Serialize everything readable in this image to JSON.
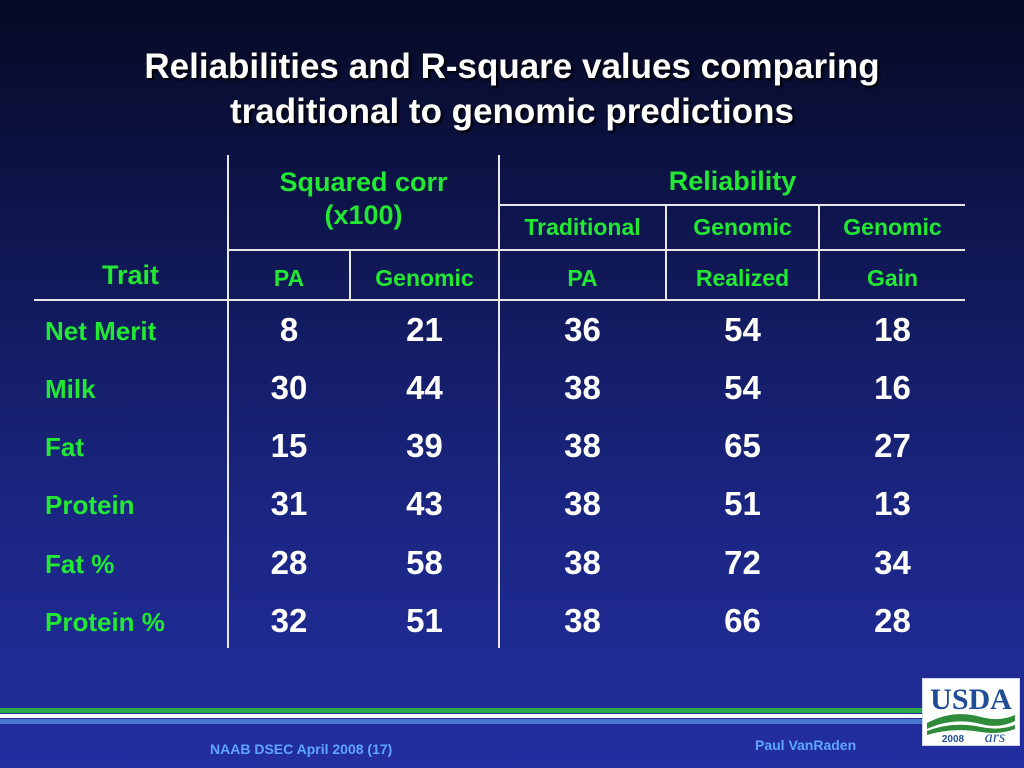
{
  "title": {
    "line1": "Reliabilities and R-square values comparing",
    "line2": "traditional to genomic predictions"
  },
  "headers": {
    "trait": "Trait",
    "squared_corr_line1": "Squared corr",
    "squared_corr_line2": "(x100)",
    "reliability": "Reliability",
    "traditional": "Traditional",
    "genomic_a": "Genomic",
    "genomic_b": "Genomic",
    "pa_a": "PA",
    "genomic_c": "Genomic",
    "pa_b": "PA",
    "realized": "Realized",
    "gain": "Gain"
  },
  "rows": [
    {
      "trait": "Net Merit",
      "values": [
        "8",
        "21",
        "36",
        "54",
        "18"
      ]
    },
    {
      "trait": "Milk",
      "values": [
        "30",
        "44",
        "38",
        "54",
        "16"
      ]
    },
    {
      "trait": "Fat",
      "values": [
        "15",
        "39",
        "38",
        "65",
        "27"
      ]
    },
    {
      "trait": "Protein",
      "values": [
        "31",
        "43",
        "38",
        "51",
        "13"
      ]
    },
    {
      "trait": "Fat %",
      "values": [
        "28",
        "58",
        "38",
        "72",
        "34"
      ]
    },
    {
      "trait": "Protein %",
      "values": [
        "32",
        "51",
        "38",
        "66",
        "28"
      ]
    }
  ],
  "footer": {
    "left": "NAAB DSEC April 2008 (17)",
    "right": "Paul VanRaden"
  },
  "logo": {
    "text": "USDA",
    "year": "2008",
    "mark": "ars"
  },
  "colors": {
    "header_green": "#22e833",
    "value_white": "#ffffff",
    "footer_blue": "#5fa6ff",
    "usda_blue": "#1f4e96",
    "usda_green": "#2e8b3a"
  }
}
